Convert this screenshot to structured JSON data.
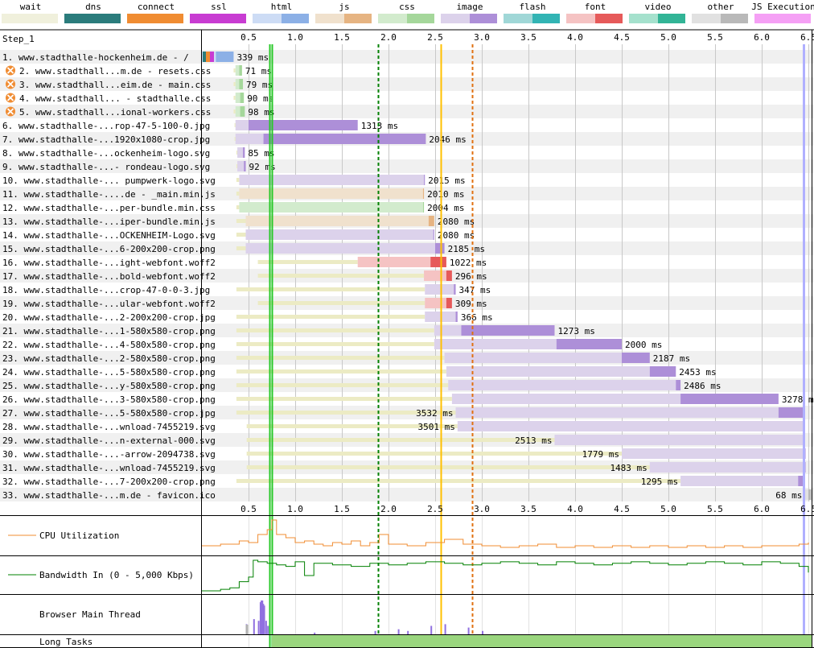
{
  "legend": [
    {
      "label": "wait",
      "light": "#f0f0dc",
      "dark": "#f0f0dc"
    },
    {
      "label": "dns",
      "light": "#2b7c7c",
      "dark": "#2b7c7c"
    },
    {
      "label": "connect",
      "light": "#f08c32",
      "dark": "#f08c32"
    },
    {
      "label": "ssl",
      "light": "#c83cd2",
      "dark": "#c83cd2"
    },
    {
      "label": "html",
      "light": "#cddcf5",
      "dark": "#8cb0e6"
    },
    {
      "label": "js",
      "light": "#f0e1cd",
      "dark": "#e6b482"
    },
    {
      "label": "css",
      "light": "#d2ebcd",
      "dark": "#a5d79b"
    },
    {
      "label": "image",
      "light": "#dcd2eb",
      "dark": "#ad8fd8"
    },
    {
      "label": "flash",
      "light": "#a0d7d7",
      "dark": "#32b4b4"
    },
    {
      "label": "font",
      "light": "#f5c3c3",
      "dark": "#e65a5a"
    },
    {
      "label": "video",
      "light": "#a5e1cd",
      "dark": "#32b496"
    },
    {
      "label": "other",
      "light": "#e1e1e1",
      "dark": "#b9b9b9"
    },
    {
      "label": "JS Execution",
      "light": "#f5a0f5",
      "dark": "#f5a0f5"
    }
  ],
  "step_label": "Step_1",
  "chart_data": {
    "type": "waterfall",
    "x_unit": "s",
    "xlim": [
      0,
      6.55
    ],
    "ticks": [
      "0.5",
      "1.0",
      "1.5",
      "2.0",
      "2.5",
      "3.0",
      "3.5",
      "4.0",
      "4.5",
      "5.0",
      "5.5",
      "6.0",
      "6.5"
    ],
    "markers": [
      {
        "name": "start-render",
        "t": 0.72,
        "color": "#28c828"
      },
      {
        "name": "first-paint",
        "t": 0.75,
        "color": "#28c828"
      },
      {
        "name": "dom-content-loaded",
        "t": 1.89,
        "color": "#008000"
      },
      {
        "name": "on-load",
        "t": 2.56,
        "color": "#ffc000"
      },
      {
        "name": "document-complete",
        "t": 2.9,
        "color": "#e07010"
      },
      {
        "name": "fully-loaded",
        "t": 6.45,
        "color": "#b0b0ff"
      }
    ],
    "requests": [
      {
        "label": "1. www.stadthalle-hockenheim.de - /",
        "warn": false,
        "type": "html",
        "wait": [
          0.0,
          0.0
        ],
        "light": [
          0.0,
          0.15
        ],
        "dark": [
          0.15,
          0.34
        ],
        "dur": "339 ms",
        "label_side": "right"
      },
      {
        "label": "2. www.stadthall...m.de - resets.css",
        "warn": true,
        "type": "css",
        "wait": [
          0.34,
          0.36
        ],
        "light": [
          0.36,
          0.4
        ],
        "dark": [
          0.4,
          0.43
        ],
        "dur": "71 ms",
        "label_side": "right"
      },
      {
        "label": "3. www.stadthall...eim.de - main.css",
        "warn": true,
        "type": "css",
        "wait": [
          0.34,
          0.36
        ],
        "light": [
          0.36,
          0.4
        ],
        "dark": [
          0.4,
          0.44
        ],
        "dur": "79 ms",
        "label_side": "right"
      },
      {
        "label": "4. www.stadthall... - stadthalle.css",
        "warn": true,
        "type": "css",
        "wait": [
          0.34,
          0.36
        ],
        "light": [
          0.36,
          0.41
        ],
        "dark": [
          0.41,
          0.45
        ],
        "dur": "90 ms",
        "label_side": "right"
      },
      {
        "label": "5. www.stadthall...ional-workers.css",
        "warn": true,
        "type": "css",
        "wait": [
          0.34,
          0.36
        ],
        "light": [
          0.36,
          0.41
        ],
        "dark": [
          0.41,
          0.46
        ],
        "dur": "98 ms",
        "label_side": "right"
      },
      {
        "label": "6. www.stadthalle-...rop-47-5-100-0.jpg",
        "warn": false,
        "type": "image",
        "wait": [
          0.35,
          0.36
        ],
        "light": [
          0.36,
          0.5
        ],
        "dark": [
          0.5,
          1.67
        ],
        "dur": "1313 ms",
        "label_side": "right"
      },
      {
        "label": "7. www.stadthalle-...1920x1080-crop.jpg",
        "warn": false,
        "type": "image",
        "wait": [
          0.35,
          0.36
        ],
        "light": [
          0.36,
          0.66
        ],
        "dark": [
          0.66,
          2.4
        ],
        "dur": "2046 ms",
        "label_side": "right"
      },
      {
        "label": "8. www.stadthalle-...ockenheim-logo.svg",
        "warn": false,
        "type": "image",
        "wait": [
          0.37,
          0.38
        ],
        "light": [
          0.38,
          0.44
        ],
        "dark": [
          0.44,
          0.46
        ],
        "dur": "85 ms",
        "label_side": "right"
      },
      {
        "label": "9. www.stadthalle-...- rondeau-logo.svg",
        "warn": false,
        "type": "image",
        "wait": [
          0.37,
          0.38
        ],
        "light": [
          0.38,
          0.45
        ],
        "dark": [
          0.45,
          0.47
        ],
        "dur": "92 ms",
        "label_side": "right"
      },
      {
        "label": "10. www.stadthalle-... pumpwerk-logo.svg",
        "warn": false,
        "type": "image",
        "wait": [
          0.37,
          0.4
        ],
        "light": [
          0.4,
          2.38
        ],
        "dark": [
          2.38,
          2.39
        ],
        "dur": "2015 ms",
        "label_side": "right"
      },
      {
        "label": "11. www.stadthalle-....de - _main.min.js",
        "warn": false,
        "type": "js",
        "wait": [
          0.37,
          0.4
        ],
        "light": [
          0.4,
          2.37
        ],
        "dark": [
          2.37,
          2.38
        ],
        "dur": "2010 ms",
        "label_side": "right"
      },
      {
        "label": "12. www.stadthalle-...per-bundle.min.css",
        "warn": false,
        "type": "css",
        "wait": [
          0.37,
          0.4
        ],
        "light": [
          0.4,
          2.37
        ],
        "dark": [
          2.37,
          2.38
        ],
        "dur": "2004 ms",
        "label_side": "right"
      },
      {
        "label": "13. www.stadthalle-...iper-bundle.min.js",
        "warn": false,
        "type": "js",
        "wait": [
          0.37,
          0.47
        ],
        "light": [
          0.47,
          2.43
        ],
        "dark": [
          2.43,
          2.49
        ],
        "dur": "2080 ms",
        "label_side": "right"
      },
      {
        "label": "14. www.stadthalle-...OCKENHEIM-Logo.svg",
        "warn": false,
        "type": "image",
        "wait": [
          0.37,
          0.47
        ],
        "light": [
          0.47,
          2.48
        ],
        "dark": [
          2.48,
          2.49
        ],
        "dur": "2080 ms",
        "label_side": "right"
      },
      {
        "label": "15. www.stadthalle-...6-200x200-crop.png",
        "warn": false,
        "type": "image",
        "wait": [
          0.37,
          0.47
        ],
        "light": [
          0.47,
          2.5
        ],
        "dark": [
          2.5,
          2.6
        ],
        "dur": "2185 ms",
        "label_side": "right"
      },
      {
        "label": "16. www.stadthalle-...ight-webfont.woff2",
        "warn": false,
        "type": "font",
        "wait": [
          0.6,
          1.67
        ],
        "light": [
          1.67,
          2.45
        ],
        "dark": [
          2.45,
          2.62
        ],
        "dur": "1022 ms",
        "label_side": "right"
      },
      {
        "label": "17. www.stadthalle-...bold-webfont.woff2",
        "warn": false,
        "type": "font",
        "wait": [
          0.6,
          2.38
        ],
        "light": [
          2.38,
          2.62
        ],
        "dark": [
          2.62,
          2.68
        ],
        "dur": "296 ms",
        "label_side": "right"
      },
      {
        "label": "18. www.stadthalle-...crop-47-0-0-3.jpg",
        "warn": false,
        "type": "image",
        "wait": [
          0.37,
          2.39
        ],
        "light": [
          2.39,
          2.7
        ],
        "dark": [
          2.7,
          2.72
        ],
        "dur": "347 ms",
        "label_side": "right"
      },
      {
        "label": "19. www.stadthalle-...ular-webfont.woff2",
        "warn": false,
        "type": "font",
        "wait": [
          0.6,
          2.39
        ],
        "light": [
          2.39,
          2.62
        ],
        "dark": [
          2.62,
          2.68
        ],
        "dur": "309 ms",
        "label_side": "right"
      },
      {
        "label": "20. www.stadthalle-...2-200x200-crop.jpg",
        "warn": false,
        "type": "image",
        "wait": [
          0.37,
          2.39
        ],
        "light": [
          2.39,
          2.72
        ],
        "dark": [
          2.72,
          2.74
        ],
        "dur": "366 ms",
        "label_side": "right"
      },
      {
        "label": "21. www.stadthalle-...1-580x580-crop.png",
        "warn": false,
        "type": "image",
        "wait": [
          0.37,
          2.49
        ],
        "light": [
          2.49,
          2.78
        ],
        "dark": [
          2.78,
          3.78
        ],
        "dur": "1273 ms",
        "label_side": "right"
      },
      {
        "label": "22. www.stadthalle-...4-580x580-crop.png",
        "warn": false,
        "type": "image",
        "wait": [
          0.37,
          2.49
        ],
        "light": [
          2.49,
          3.8
        ],
        "dark": [
          3.8,
          4.5
        ],
        "dur": "2000 ms",
        "label_side": "right"
      },
      {
        "label": "23. www.stadthalle-...2-580x580-crop.png",
        "warn": false,
        "type": "image",
        "wait": [
          0.37,
          2.6
        ],
        "light": [
          2.6,
          4.5
        ],
        "dark": [
          4.5,
          4.8
        ],
        "dur": "2187 ms",
        "label_side": "right"
      },
      {
        "label": "24. www.stadthalle-...5-580x580-crop.png",
        "warn": false,
        "type": "image",
        "wait": [
          0.37,
          2.62
        ],
        "light": [
          2.62,
          4.8
        ],
        "dark": [
          4.8,
          5.08
        ],
        "dur": "2453 ms",
        "label_side": "right"
      },
      {
        "label": "25. www.stadthalle-...y-580x580-crop.png",
        "warn": false,
        "type": "image",
        "wait": [
          0.37,
          2.64
        ],
        "light": [
          2.64,
          5.08
        ],
        "dark": [
          5.08,
          5.13
        ],
        "dur": "2486 ms",
        "label_side": "right"
      },
      {
        "label": "26. www.stadthalle-...3-580x580-crop.png",
        "warn": false,
        "type": "image",
        "wait": [
          0.37,
          2.68
        ],
        "light": [
          2.68,
          5.13
        ],
        "dark": [
          5.13,
          6.18
        ],
        "dur": "3278 ms",
        "label_side": "right"
      },
      {
        "label": "27. www.stadthalle-...5-580x580-crop.jpg",
        "warn": false,
        "type": "image",
        "wait": [
          0.37,
          2.72
        ],
        "light": [
          2.72,
          6.18
        ],
        "dark": [
          6.18,
          6.46
        ],
        "dur": "3532 ms",
        "label_side": "left"
      },
      {
        "label": "28. www.stadthalle-...wnload-7455219.svg",
        "warn": false,
        "type": "image",
        "wait": [
          0.48,
          2.74
        ],
        "light": [
          2.74,
          6.45
        ],
        "dark": [
          6.45,
          6.46
        ],
        "dur": "3501 ms",
        "label_side": "left"
      },
      {
        "label": "29. www.stadthalle-...n-external-000.svg",
        "warn": false,
        "type": "image",
        "wait": [
          0.48,
          3.78
        ],
        "light": [
          3.78,
          6.45
        ],
        "dark": [
          6.45,
          6.46
        ],
        "dur": "2513 ms",
        "label_side": "left"
      },
      {
        "label": "30. www.stadthalle-...-arrow-2094738.svg",
        "warn": false,
        "type": "image",
        "wait": [
          0.48,
          4.5
        ],
        "light": [
          4.5,
          6.46
        ],
        "dark": [
          6.46,
          6.47
        ],
        "dur": "1779 ms",
        "label_side": "left"
      },
      {
        "label": "31. www.stadthalle-...wnload-7455219.svg",
        "warn": false,
        "type": "image",
        "wait": [
          0.48,
          4.8
        ],
        "light": [
          4.8,
          6.46
        ],
        "dark": [
          6.46,
          6.47
        ],
        "dur": "1483 ms",
        "label_side": "left"
      },
      {
        "label": "32. www.stadthalle-...7-200x200-crop.png",
        "warn": false,
        "type": "image",
        "wait": [
          0.37,
          5.13
        ],
        "light": [
          5.13,
          6.39
        ],
        "dark": [
          6.39,
          6.46
        ],
        "dur": "1295 ms",
        "label_side": "left"
      },
      {
        "label": "33. www.stadthalle-...m.de - favicon.ico",
        "warn": false,
        "type": "other",
        "wait": [
          0.0,
          0.0
        ],
        "light": [
          6.46,
          6.5
        ],
        "dark": [
          6.5,
          6.53
        ],
        "dur": "68 ms",
        "label_side": "left"
      }
    ],
    "cpu_utilization": {
      "name": "CPU Utilization",
      "t": [
        0.0,
        0.2,
        0.4,
        0.5,
        0.6,
        0.7,
        0.75,
        0.8,
        0.9,
        1.0,
        1.1,
        1.2,
        1.3,
        1.4,
        1.5,
        1.6,
        1.7,
        1.8,
        1.9,
        2.0,
        2.2,
        2.4,
        2.6,
        2.8,
        3.0,
        3.2,
        3.4,
        3.6,
        3.8,
        4.0,
        4.2,
        4.4,
        4.6,
        4.8,
        5.0,
        5.2,
        5.4,
        5.6,
        5.8,
        6.0,
        6.2,
        6.4,
        6.5
      ],
      "values": [
        20,
        25,
        35,
        30,
        55,
        70,
        100,
        55,
        45,
        30,
        35,
        25,
        20,
        30,
        25,
        35,
        20,
        30,
        55,
        25,
        20,
        30,
        40,
        25,
        20,
        15,
        20,
        25,
        15,
        20,
        15,
        20,
        15,
        20,
        15,
        20,
        15,
        20,
        15,
        20,
        20,
        25,
        30
      ]
    },
    "bandwidth_in": {
      "name": "Bandwidth In (0 - 5,000 Kbps)",
      "t": [
        0.0,
        0.2,
        0.3,
        0.4,
        0.5,
        0.55,
        0.6,
        0.7,
        0.8,
        0.9,
        1.0,
        1.1,
        1.2,
        1.4,
        1.6,
        1.8,
        2.0,
        2.2,
        2.4,
        2.6,
        2.8,
        3.0,
        3.2,
        3.4,
        3.6,
        3.8,
        4.0,
        4.2,
        4.4,
        4.6,
        4.8,
        5.0,
        5.2,
        5.4,
        5.6,
        5.8,
        6.0,
        6.2,
        6.4,
        6.5
      ],
      "values": [
        0,
        5,
        10,
        30,
        45,
        100,
        95,
        90,
        85,
        80,
        95,
        50,
        90,
        85,
        80,
        90,
        85,
        90,
        95,
        90,
        85,
        90,
        95,
        90,
        85,
        95,
        90,
        85,
        90,
        95,
        90,
        85,
        90,
        95,
        90,
        85,
        95,
        90,
        80,
        60
      ]
    },
    "main_thread": {
      "name": "Browser Main Thread",
      "t": [
        0.47,
        0.55,
        0.6,
        0.62,
        0.63,
        0.64,
        0.65,
        0.66,
        0.68,
        0.7,
        1.2,
        1.85,
        2.1,
        2.2,
        2.45,
        2.6,
        2.85,
        3.0
      ],
      "values": [
        30,
        45,
        40,
        95,
        100,
        100,
        90,
        85,
        40,
        25,
        5,
        10,
        15,
        10,
        25,
        30,
        20,
        10
      ]
    },
    "long_tasks": {
      "name": "Long Tasks",
      "start": 0.75,
      "end": 6.55
    }
  }
}
